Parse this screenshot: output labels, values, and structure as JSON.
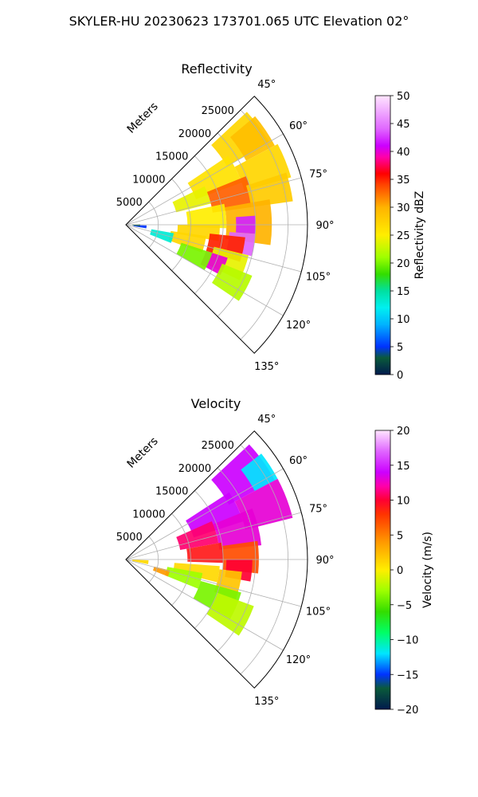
{
  "suptitle": "SKYLER-HU  20230623  173701.065 UTC Elevation 02°",
  "charts": [
    {
      "id": "reflectivity",
      "title": "Reflectivity",
      "radial_label": "Meters",
      "colorbar_label": "Reflectivity dBZ",
      "field": "reflectivity"
    },
    {
      "id": "velocity",
      "title": "Velocity",
      "radial_label": "Meters",
      "colorbar_label": "Velocity (m/s)",
      "field": "velocity"
    }
  ],
  "chart_data": [
    {
      "type": "heatmap",
      "projection": "polar-sector",
      "title": "Reflectivity",
      "field": "reflectivity",
      "azimuth_range_deg": [
        45,
        135
      ],
      "azimuth_ticks_deg": [
        45,
        60,
        75,
        90,
        105,
        120,
        135
      ],
      "azimuth_tick_labels": [
        "45°",
        "60°",
        "75°",
        "90°",
        "105°",
        "120°",
        "135°"
      ],
      "range_lim_m": [
        0,
        28000
      ],
      "range_ticks_m": [
        5000,
        10000,
        15000,
        20000,
        25000
      ],
      "range_tick_labels": [
        "5000",
        "10000",
        "15000",
        "20000",
        "25000"
      ],
      "range_axis_label": "Meters",
      "grid": true,
      "colorbar": {
        "label": "Reflectivity dBZ",
        "vmin": 0,
        "vmax": 50,
        "ticks": [
          0,
          5,
          10,
          15,
          20,
          25,
          30,
          35,
          40,
          45,
          50
        ],
        "tick_labels": [
          "0",
          "5",
          "10",
          "15",
          "20",
          "25",
          "30",
          "35",
          "40",
          "45",
          "50"
        ],
        "stops": [
          [
            0,
            "#001a4d"
          ],
          [
            3,
            "#0a5a3a"
          ],
          [
            5,
            "#0033ff"
          ],
          [
            9,
            "#00b4ff"
          ],
          [
            12,
            "#00f0f0"
          ],
          [
            15,
            "#00e0a0"
          ],
          [
            18,
            "#33dd00"
          ],
          [
            21,
            "#9eff00"
          ],
          [
            25,
            "#ffee00"
          ],
          [
            30,
            "#ffb300"
          ],
          [
            34,
            "#ff4400"
          ],
          [
            36,
            "#ff0000"
          ],
          [
            39,
            "#ff00aa"
          ],
          [
            41,
            "#cc00ff"
          ],
          [
            44,
            "#e066ff"
          ],
          [
            50,
            "#ffe6ff"
          ]
        ]
      },
      "cells": [
        {
          "az": [
            47,
            60
          ],
          "r": [
            18000,
            25500
          ],
          "value": 27
        },
        {
          "az": [
            50,
            62
          ],
          "r": [
            21000,
            26000
          ],
          "value": 29
        },
        {
          "az": [
            56,
            70
          ],
          "r": [
            11500,
            19000
          ],
          "value": 26
        },
        {
          "az": [
            62,
            74
          ],
          "r": [
            19000,
            26500
          ],
          "value": 27
        },
        {
          "az": [
            64,
            76
          ],
          "r": [
            8000,
            13500
          ],
          "value": 24
        },
        {
          "az": [
            68,
            82
          ],
          "r": [
            13500,
            20000
          ],
          "value": 33
        },
        {
          "az": [
            72,
            82
          ],
          "r": [
            19500,
            26000
          ],
          "value": 28
        },
        {
          "az": [
            78,
            92
          ],
          "r": [
            9500,
            15500
          ],
          "value": 25
        },
        {
          "az": [
            80,
            98
          ],
          "r": [
            15500,
            22500
          ],
          "value": 30
        },
        {
          "az": [
            86,
            94
          ],
          "r": [
            17000,
            20000
          ],
          "value": 42
        },
        {
          "az": [
            90,
            100
          ],
          "r": [
            8000,
            14500
          ],
          "value": 27
        },
        {
          "az": [
            94,
            104
          ],
          "r": [
            16000,
            20000
          ],
          "value": 44
        },
        {
          "az": [
            96,
            108
          ],
          "r": [
            13000,
            18500
          ],
          "value": 35
        },
        {
          "az": [
            98,
            110
          ],
          "r": [
            7000,
            12500
          ],
          "value": 27
        },
        {
          "az": [
            104,
            116
          ],
          "r": [
            14000,
            19500
          ],
          "value": 24
        },
        {
          "az": [
            108,
            118
          ],
          "r": [
            13000,
            16500
          ],
          "value": 40
        },
        {
          "az": [
            108,
            120
          ],
          "r": [
            9000,
            14000
          ],
          "value": 20
        },
        {
          "az": [
            112,
            124
          ],
          "r": [
            16000,
            21000
          ],
          "value": 22
        },
        {
          "az": [
            100,
            112
          ],
          "r": [
            4000,
            7500
          ],
          "value": 13
        },
        {
          "az": [
            92,
            100
          ],
          "r": [
            1200,
            3200
          ],
          "value": 5
        },
        {
          "az": [
            88,
            96
          ],
          "r": [
            1000,
            2200
          ],
          "value": 3
        }
      ]
    },
    {
      "type": "heatmap",
      "projection": "polar-sector",
      "title": "Velocity",
      "field": "velocity",
      "azimuth_range_deg": [
        45,
        135
      ],
      "azimuth_ticks_deg": [
        45,
        60,
        75,
        90,
        105,
        120,
        135
      ],
      "azimuth_tick_labels": [
        "45°",
        "60°",
        "75°",
        "90°",
        "105°",
        "120°",
        "135°"
      ],
      "range_lim_m": [
        0,
        28000
      ],
      "range_ticks_m": [
        5000,
        10000,
        15000,
        20000,
        25000
      ],
      "range_tick_labels": [
        "5000",
        "10000",
        "15000",
        "20000",
        "25000"
      ],
      "range_axis_label": "Meters",
      "grid": true,
      "colorbar": {
        "label": "Velocity (m/s)",
        "vmin": -20,
        "vmax": 20,
        "ticks": [
          -20,
          -15,
          -10,
          -5,
          0,
          5,
          10,
          15,
          20
        ],
        "tick_labels": [
          "−20",
          "−15",
          "−10",
          "−5",
          "0",
          "5",
          "10",
          "15",
          "20"
        ],
        "stops": [
          [
            -20,
            "#001a4d"
          ],
          [
            -17,
            "#0a5a3a"
          ],
          [
            -15,
            "#0033ff"
          ],
          [
            -12,
            "#00e6ff"
          ],
          [
            -9,
            "#00ff66"
          ],
          [
            -6,
            "#33dd00"
          ],
          [
            -3,
            "#9eff00"
          ],
          [
            0,
            "#ffee00"
          ],
          [
            4,
            "#ff9900"
          ],
          [
            8,
            "#ff3300"
          ],
          [
            10,
            "#ff0033"
          ],
          [
            12,
            "#ff00aa"
          ],
          [
            14,
            "#cc00ff"
          ],
          [
            17,
            "#e066ff"
          ],
          [
            20,
            "#ffe6ff"
          ]
        ]
      },
      "cells": [
        {
          "az": [
            47,
            62
          ],
          "r": [
            18000,
            26000
          ],
          "value": 14
        },
        {
          "az": [
            52,
            62
          ],
          "r": [
            22500,
            26500
          ],
          "value": -12
        },
        {
          "az": [
            57,
            72
          ],
          "r": [
            11000,
            19000
          ],
          "value": 14
        },
        {
          "az": [
            62,
            76
          ],
          "r": [
            19000,
            26500
          ],
          "value": 13
        },
        {
          "az": [
            66,
            80
          ],
          "r": [
            8500,
            14500
          ],
          "value": 11
        },
        {
          "az": [
            68,
            84
          ],
          "r": [
            14500,
            21000
          ],
          "value": 13
        },
        {
          "az": [
            80,
            92
          ],
          "r": [
            9500,
            15000
          ],
          "value": 9
        },
        {
          "az": [
            82,
            96
          ],
          "r": [
            15000,
            20500
          ],
          "value": 7
        },
        {
          "az": [
            90,
            100
          ],
          "r": [
            15500,
            19500
          ],
          "value": 10
        },
        {
          "az": [
            94,
            104
          ],
          "r": [
            7500,
            14500
          ],
          "value": 1
        },
        {
          "az": [
            96,
            110
          ],
          "r": [
            14500,
            18000
          ],
          "value": 2
        },
        {
          "az": [
            100,
            112
          ],
          "r": [
            6500,
            12000
          ],
          "value": -3
        },
        {
          "az": [
            106,
            120
          ],
          "r": [
            12000,
            18500
          ],
          "value": -4
        },
        {
          "az": [
            110,
            124
          ],
          "r": [
            15000,
            21000
          ],
          "value": -2
        },
        {
          "az": [
            92,
            102
          ],
          "r": [
            1000,
            3500
          ],
          "value": 1
        },
        {
          "az": [
            104,
            112
          ],
          "r": [
            4500,
            7000
          ],
          "value": 4
        }
      ]
    }
  ]
}
